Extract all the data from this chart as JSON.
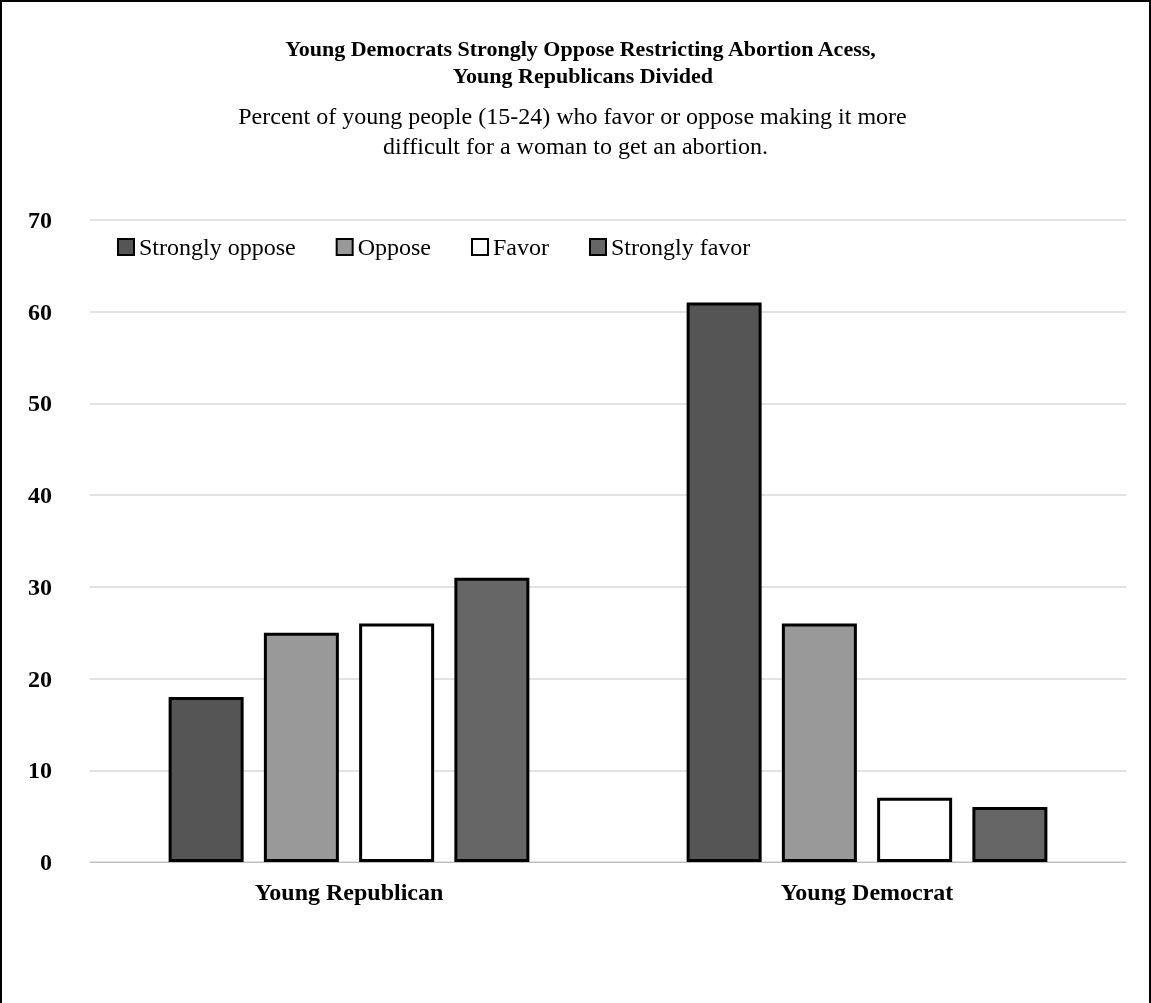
{
  "chart_data": {
    "type": "bar",
    "title": "Young Democrats Strongly Oppose Restricting Abortion Acess, Young Republicans Divided",
    "subtitle": "Percent of young people (15-24) who favor or oppose making it more difficult for a woman to get an abortion.",
    "categories": [
      "Young Republican",
      "Young Democrat"
    ],
    "series": [
      {
        "name": "Strongly oppose",
        "color": "#555555",
        "values": [
          18,
          61
        ]
      },
      {
        "name": "Oppose",
        "color": "#999999",
        "values": [
          25,
          26
        ]
      },
      {
        "name": "Favor",
        "color": "#ffffff",
        "values": [
          26,
          7
        ]
      },
      {
        "name": "Strongly favor",
        "color": "#666666",
        "values": [
          31,
          6
        ]
      }
    ],
    "ylim": [
      0,
      70
    ],
    "yticks": [
      0,
      10,
      20,
      30,
      40,
      50,
      60,
      70
    ],
    "grid": "y",
    "legend": "top"
  }
}
